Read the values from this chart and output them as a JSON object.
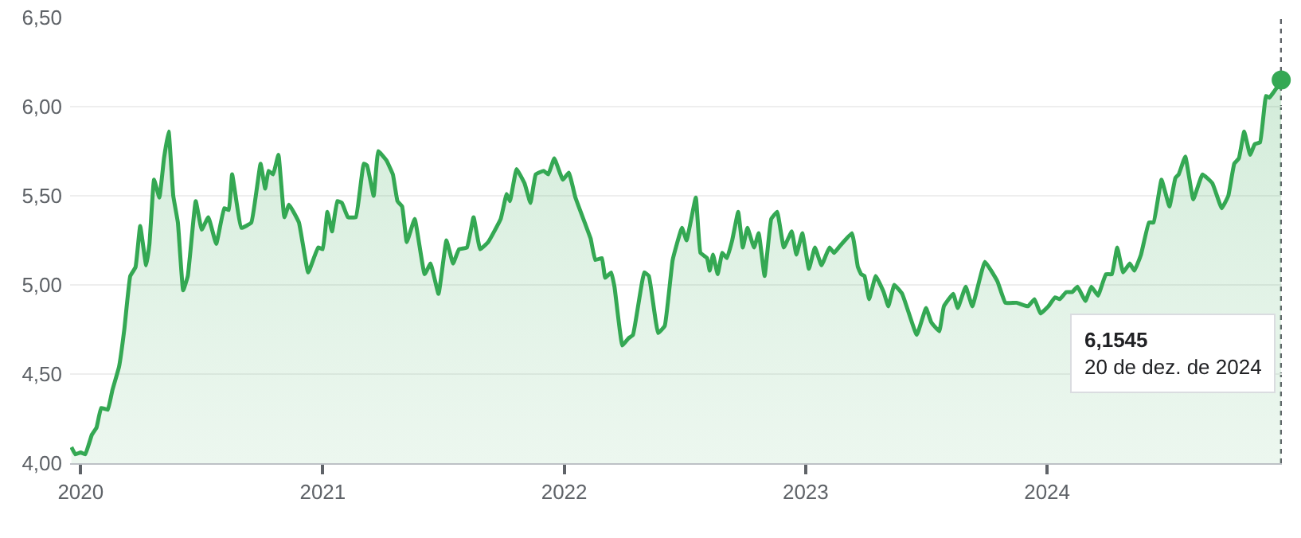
{
  "chart_data": {
    "type": "area",
    "series": [
      {
        "color": "#34a853",
        "x": [
          "2019-12-18",
          "2019-12-24",
          "2020-01-01",
          "2020-01-08",
          "2020-01-18",
          "2020-01-25",
          "2020-02-01",
          "2020-02-11",
          "2020-02-18",
          "2020-02-28",
          "2020-03-07",
          "2020-03-16",
          "2020-03-24",
          "2020-03-31",
          "2020-04-09",
          "2020-04-14",
          "2020-04-21",
          "2020-04-29",
          "2020-05-06",
          "2020-05-13",
          "2020-05-20",
          "2020-05-27",
          "2020-06-04",
          "2020-06-11",
          "2020-06-23",
          "2020-07-02",
          "2020-07-12",
          "2020-07-24",
          "2020-08-05",
          "2020-08-12",
          "2020-08-17",
          "2020-08-31",
          "2020-09-15",
          "2020-09-29",
          "2020-10-06",
          "2020-10-11",
          "2020-10-18",
          "2020-10-26",
          "2020-11-04",
          "2020-11-11",
          "2020-11-26",
          "2020-12-10",
          "2020-12-25",
          "2021-01-01",
          "2021-01-08",
          "2021-01-15",
          "2021-01-23",
          "2021-01-30",
          "2021-02-08",
          "2021-02-20",
          "2021-03-04",
          "2021-03-09",
          "2021-03-19",
          "2021-03-26",
          "2021-04-07",
          "2021-04-17",
          "2021-04-24",
          "2021-05-01",
          "2021-05-08",
          "2021-05-20",
          "2021-06-04",
          "2021-06-13",
          "2021-06-25",
          "2021-07-07",
          "2021-07-17",
          "2021-07-26",
          "2021-08-07",
          "2021-08-17",
          "2021-08-27",
          "2021-09-08",
          "2021-09-27",
          "2021-10-06",
          "2021-10-11",
          "2021-10-21",
          "2021-11-02",
          "2021-11-11",
          "2021-11-19",
          "2021-12-01",
          "2021-12-08",
          "2021-12-17",
          "2021-12-30",
          "2022-01-08",
          "2022-01-18",
          "2022-02-01",
          "2022-02-10",
          "2022-02-17",
          "2022-02-27",
          "2022-03-04",
          "2022-03-13",
          "2022-03-18",
          "2022-03-30",
          "2022-04-08",
          "2022-04-15",
          "2022-05-02",
          "2022-05-09",
          "2022-05-23",
          "2022-06-02",
          "2022-06-14",
          "2022-06-28",
          "2022-07-05",
          "2022-07-19",
          "2022-07-26",
          "2022-08-05",
          "2022-08-09",
          "2022-08-14",
          "2022-08-21",
          "2022-08-28",
          "2022-09-04",
          "2022-09-12",
          "2022-09-21",
          "2022-09-28",
          "2022-10-05",
          "2022-10-15",
          "2022-10-22",
          "2022-10-31",
          "2022-11-10",
          "2022-11-19",
          "2022-11-29",
          "2022-12-11",
          "2022-12-18",
          "2022-12-27",
          "2023-01-06",
          "2023-01-15",
          "2023-01-25",
          "2023-02-06",
          "2023-02-13",
          "2023-02-20",
          "2023-03-12",
          "2023-03-21",
          "2023-03-26",
          "2023-03-31",
          "2023-04-07",
          "2023-04-17",
          "2023-04-29",
          "2023-05-06",
          "2023-05-15",
          "2023-05-27",
          "2023-06-18",
          "2023-07-02",
          "2023-07-10",
          "2023-07-22",
          "2023-07-29",
          "2023-08-12",
          "2023-08-19",
          "2023-08-31",
          "2023-09-10",
          "2023-09-29",
          "2023-10-18",
          "2023-10-30",
          "2023-11-16",
          "2023-12-03",
          "2023-12-13",
          "2023-12-22",
          "2024-01-03",
          "2024-01-13",
          "2024-01-20",
          "2024-01-30",
          "2024-02-08",
          "2024-02-16",
          "2024-02-28",
          "2024-03-08",
          "2024-03-18",
          "2024-03-30",
          "2024-04-08",
          "2024-04-16",
          "2024-04-25",
          "2024-05-05",
          "2024-05-12",
          "2024-05-22",
          "2024-06-03",
          "2024-06-10",
          "2024-06-22",
          "2024-07-04",
          "2024-07-13",
          "2024-07-18",
          "2024-07-28",
          "2024-08-09",
          "2024-08-23",
          "2024-09-07",
          "2024-09-21",
          "2024-10-01",
          "2024-10-10",
          "2024-10-17",
          "2024-10-25",
          "2024-11-03",
          "2024-11-10",
          "2024-11-18",
          "2024-11-27",
          "2024-12-02",
          "2024-12-12",
          "2024-12-20"
        ],
        "values": [
          4.09,
          4.05,
          4.06,
          4.05,
          4.16,
          4.2,
          4.31,
          4.3,
          4.41,
          4.54,
          4.75,
          5.05,
          5.1,
          5.33,
          5.11,
          5.23,
          5.59,
          5.49,
          5.71,
          5.86,
          5.5,
          5.35,
          4.97,
          5.05,
          5.47,
          5.31,
          5.38,
          5.23,
          5.43,
          5.42,
          5.62,
          5.32,
          5.35,
          5.68,
          5.54,
          5.64,
          5.62,
          5.73,
          5.38,
          5.45,
          5.35,
          5.07,
          5.21,
          5.2,
          5.41,
          5.3,
          5.47,
          5.46,
          5.38,
          5.38,
          5.68,
          5.67,
          5.5,
          5.75,
          5.7,
          5.62,
          5.47,
          5.44,
          5.24,
          5.37,
          5.06,
          5.12,
          4.95,
          5.25,
          5.12,
          5.2,
          5.21,
          5.38,
          5.2,
          5.24,
          5.37,
          5.51,
          5.47,
          5.65,
          5.57,
          5.46,
          5.62,
          5.64,
          5.62,
          5.71,
          5.59,
          5.63,
          5.49,
          5.35,
          5.26,
          5.14,
          5.15,
          5.04,
          5.07,
          4.99,
          4.66,
          4.7,
          4.72,
          5.07,
          5.05,
          4.73,
          4.77,
          5.14,
          5.32,
          5.25,
          5.49,
          5.18,
          5.15,
          5.08,
          5.17,
          5.06,
          5.18,
          5.15,
          5.25,
          5.41,
          5.21,
          5.32,
          5.21,
          5.29,
          5.05,
          5.37,
          5.41,
          5.21,
          5.3,
          5.17,
          5.29,
          5.09,
          5.21,
          5.11,
          5.21,
          5.18,
          5.21,
          5.29,
          5.1,
          5.06,
          5.05,
          4.92,
          5.05,
          4.96,
          4.88,
          5.0,
          4.95,
          4.72,
          4.87,
          4.79,
          4.74,
          4.88,
          4.95,
          4.87,
          4.99,
          4.88,
          5.13,
          5.02,
          4.9,
          4.9,
          4.88,
          4.92,
          4.84,
          4.88,
          4.93,
          4.92,
          4.96,
          4.96,
          4.99,
          4.91,
          4.99,
          4.94,
          5.06,
          5.06,
          5.21,
          5.07,
          5.12,
          5.08,
          5.17,
          5.35,
          5.35,
          5.59,
          5.44,
          5.6,
          5.62,
          5.72,
          5.48,
          5.62,
          5.57,
          5.43,
          5.5,
          5.68,
          5.71,
          5.86,
          5.73,
          5.79,
          5.8,
          6.06,
          6.05,
          6.1,
          6.15
        ]
      },
      {
        "type": "scatter",
        "color": "#34a853",
        "marker": "circle",
        "x": [
          "2024-12-20"
        ],
        "values": [
          6.15
        ]
      }
    ],
    "xlim": [
      "2019-12-16",
      "2024-12-21"
    ],
    "xticks": [
      {
        "value": "2020-01-01",
        "label": "2020"
      },
      {
        "value": "2021-01-01",
        "label": "2021"
      },
      {
        "value": "2022-01-01",
        "label": "2022"
      },
      {
        "value": "2023-01-01",
        "label": "2023"
      },
      {
        "value": "2024-01-01",
        "label": "2024"
      }
    ],
    "ylim": [
      4.0,
      6.5
    ],
    "yticks": [
      {
        "value": 4.0,
        "label": "4,00"
      },
      {
        "value": 4.5,
        "label": "4,50"
      },
      {
        "value": 5.0,
        "label": "5,00"
      },
      {
        "value": 5.5,
        "label": "5,50"
      },
      {
        "value": 6.0,
        "label": "6,00"
      },
      {
        "value": 6.5,
        "label": "6,50"
      }
    ],
    "grid": "y",
    "ref_lines": [
      {
        "axis": "x",
        "value": "2024-12-20",
        "line_style": "dotted",
        "color": "#5f6368"
      }
    ],
    "annotations": [
      "6,1545\n20 de dez. de 2024"
    ]
  }
}
